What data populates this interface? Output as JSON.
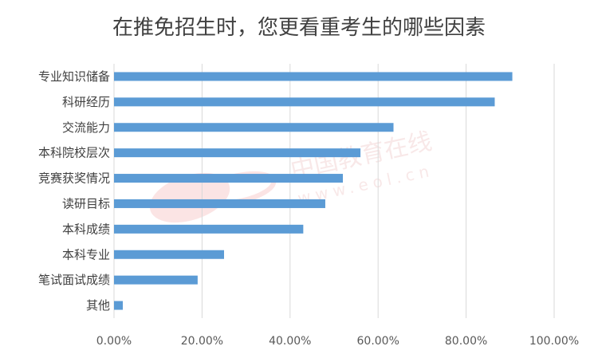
{
  "chart_data": {
    "type": "bar",
    "orientation": "horizontal",
    "title": "在推免招生时，您更看重考生的哪些因素",
    "categories": [
      "专业知识储备",
      "科研经历",
      "交流能力",
      "本科院校层次",
      "竞赛获奖情况",
      "读研目标",
      "本科成绩",
      "本科专业",
      "笔试面试成绩",
      "其他"
    ],
    "values": [
      90.5,
      86.5,
      63.5,
      56.0,
      52.0,
      48.0,
      43.0,
      25.0,
      19.0,
      2.0
    ],
    "xlim": [
      0,
      100
    ],
    "xticks": [
      "0.00%",
      "20.00%",
      "40.00%",
      "60.00%",
      "80.00%",
      "100.00%"
    ],
    "xlabel": "",
    "ylabel": "",
    "grid": "vertical",
    "legend": "none",
    "bar_color": "#5B9BD5"
  },
  "watermark": {
    "text": "中国教育在线",
    "url": "www.eol.cn",
    "logo": "eol"
  }
}
